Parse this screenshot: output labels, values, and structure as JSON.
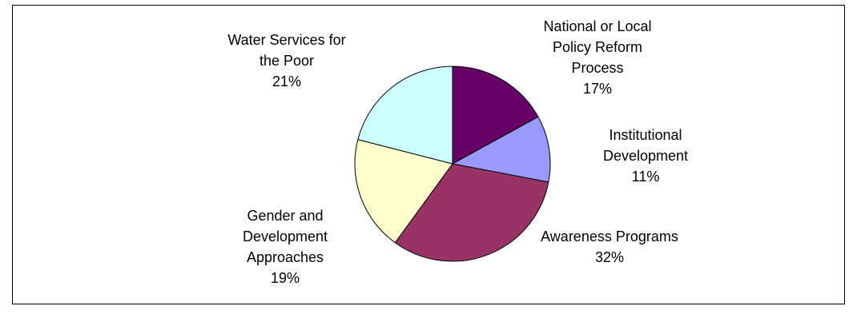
{
  "chart_data": {
    "type": "pie",
    "title": "",
    "slices": [
      {
        "label_lines": [
          "National or Local",
          "Policy Reform",
          "Process"
        ],
        "percent_label": "17%",
        "value": 17,
        "color": "#660066"
      },
      {
        "label_lines": [
          "Institutional",
          "Development"
        ],
        "percent_label": "11%",
        "value": 11,
        "color": "#9999FF"
      },
      {
        "label_lines": [
          "Awareness Programs"
        ],
        "percent_label": "32%",
        "value": 32,
        "color": "#993366"
      },
      {
        "label_lines": [
          "Gender and",
          "Development",
          "Approaches"
        ],
        "percent_label": "19%",
        "value": 19,
        "color": "#FFFFCC"
      },
      {
        "label_lines": [
          "Water Services for",
          "the Poor"
        ],
        "percent_label": "21%",
        "value": 21,
        "color": "#CCFFFF"
      }
    ],
    "start_angle_deg": 0,
    "direction": "clockwise",
    "legend": "none",
    "data_labels": "outside"
  }
}
